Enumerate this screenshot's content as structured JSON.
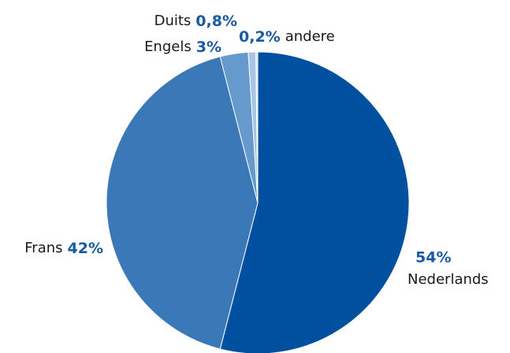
{
  "chart_data": {
    "type": "pie",
    "categories": [
      "Nederlands",
      "Frans",
      "Engels",
      "Duits",
      "andere"
    ],
    "values": [
      54,
      42,
      3,
      0.8,
      0.2
    ],
    "value_labels": [
      "54%",
      "42%",
      "3%",
      "0,8%",
      "0,2%"
    ],
    "colors": [
      "#0050a0",
      "#3a78b8",
      "#6699cc",
      "#a9c5e4",
      "#d3e2f2"
    ]
  }
}
